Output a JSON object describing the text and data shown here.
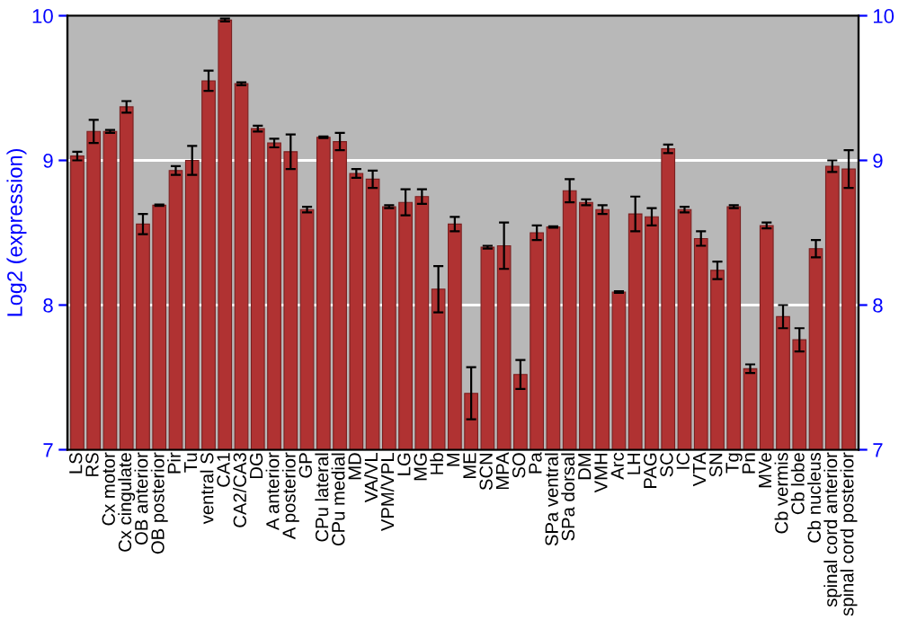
{
  "chart_data": {
    "type": "bar",
    "ylabel": "Log2 (expression)",
    "categories": [
      "LS",
      "RS",
      "Cx motor",
      "Cx cingulate",
      "OB anterior",
      "OB posterior",
      "Pir",
      "Tu",
      "ventral S",
      "CA1",
      "CA2/CA3",
      "DG",
      "A anterior",
      "A posterior",
      "GP",
      "CPu lateral",
      "CPu medial",
      "MD",
      "VA/VL",
      "VPM/VPL",
      "LG",
      "MG",
      "Hb",
      "M",
      "ME",
      "SCN",
      "MPA",
      "SO",
      "Pa",
      "SPa ventral",
      "SPa dorsal",
      "DM",
      "VMH",
      "Arc",
      "LH",
      "PAG",
      "SC",
      "IC",
      "VTA",
      "SN",
      "Tg",
      "Pn",
      "MVe",
      "Cb vermis",
      "Cb lobe",
      "Cb nucleus",
      "spinal cord anterior",
      "spinal cord posterior"
    ],
    "values": [
      9.03,
      9.2,
      9.2,
      9.37,
      8.56,
      8.69,
      8.93,
      9.0,
      9.55,
      9.97,
      9.53,
      9.22,
      9.12,
      9.06,
      8.66,
      9.16,
      9.13,
      8.91,
      8.87,
      8.68,
      8.71,
      8.75,
      8.11,
      8.56,
      7.39,
      8.4,
      8.41,
      7.52,
      8.5,
      8.54,
      8.79,
      8.71,
      8.66,
      8.09,
      8.63,
      8.61,
      9.08,
      8.66,
      8.46,
      8.24,
      8.68,
      7.56,
      8.55,
      7.92,
      7.76,
      8.39,
      8.96,
      8.94
    ],
    "errors": [
      0.03,
      0.08,
      0.01,
      0.04,
      0.07,
      0.005,
      0.03,
      0.1,
      0.07,
      0.01,
      0.01,
      0.02,
      0.03,
      0.12,
      0.02,
      0.005,
      0.06,
      0.03,
      0.06,
      0.01,
      0.09,
      0.05,
      0.16,
      0.05,
      0.18,
      0.01,
      0.16,
      0.1,
      0.05,
      0.005,
      0.08,
      0.02,
      0.03,
      0.005,
      0.12,
      0.06,
      0.03,
      0.02,
      0.05,
      0.06,
      0.01,
      0.03,
      0.02,
      0.08,
      0.08,
      0.06,
      0.04,
      0.13
    ],
    "color": "#b03232",
    "ylim": [
      7,
      10
    ],
    "yticks": [
      7,
      8,
      9,
      10
    ],
    "y2lim": [
      7,
      10
    ],
    "y2ticks": [
      7,
      8,
      9,
      10
    ],
    "grid": "y"
  }
}
